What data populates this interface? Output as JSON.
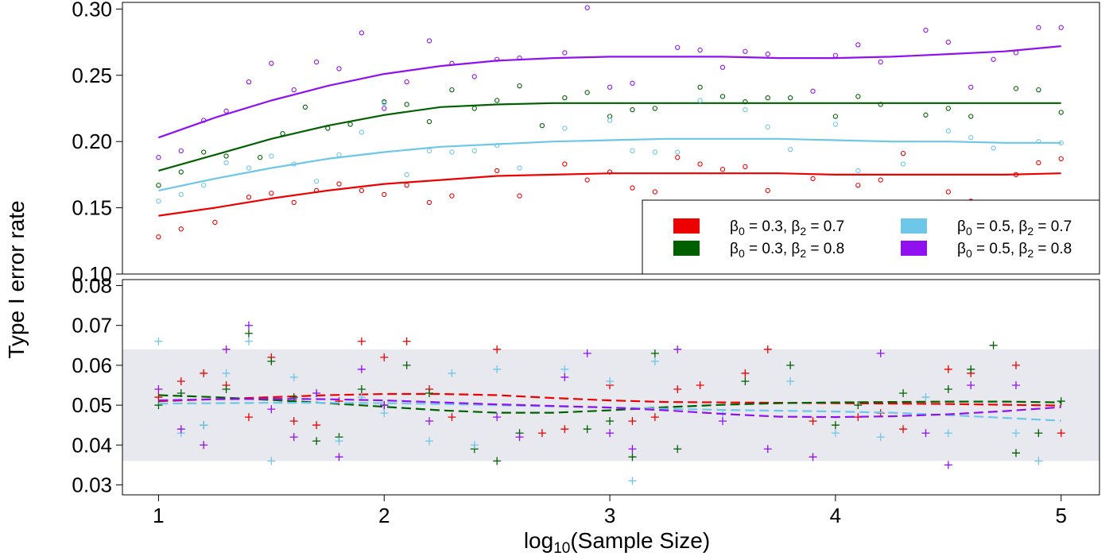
{
  "chart_data": [
    {
      "type": "scatter",
      "panel": "top",
      "ylabel": "Type I error rate",
      "xlim": [
        0.84,
        5.17
      ],
      "ylim": [
        0.1,
        0.305
      ],
      "yticks": [
        "0.10",
        "0.15",
        "0.20",
        "0.25",
        "0.30"
      ],
      "marker": "circle",
      "series": [
        {
          "name": "β0 = 0.3, β2 = 0.7",
          "color": "#EE0000",
          "x": [
            1.0,
            1.1,
            1.25,
            1.4,
            1.5,
            1.6,
            1.7,
            1.8,
            1.9,
            2.0,
            2.1,
            2.2,
            2.3,
            2.5,
            2.6,
            2.8,
            2.9,
            3.0,
            3.1,
            3.2,
            3.3,
            3.4,
            3.5,
            3.6,
            3.7,
            3.9,
            4.1,
            4.2,
            4.3,
            4.5,
            4.6,
            4.8,
            4.9,
            5.0
          ],
          "y": [
            0.128,
            0.134,
            0.139,
            0.158,
            0.161,
            0.154,
            0.163,
            0.168,
            0.163,
            0.16,
            0.167,
            0.154,
            0.159,
            0.178,
            0.159,
            0.183,
            0.171,
            0.177,
            0.165,
            0.162,
            0.188,
            0.183,
            0.179,
            0.181,
            0.163,
            0.172,
            0.167,
            0.171,
            0.191,
            0.162,
            0.155,
            0.175,
            0.184,
            0.187
          ],
          "fit_x": [
            1.0,
            1.25,
            1.5,
            1.75,
            2.0,
            2.25,
            2.5,
            2.75,
            3.0,
            3.25,
            3.5,
            3.75,
            4.0,
            4.25,
            4.5,
            4.75,
            5.0
          ],
          "fit_y": [
            0.144,
            0.15,
            0.157,
            0.163,
            0.168,
            0.171,
            0.174,
            0.175,
            0.176,
            0.176,
            0.176,
            0.176,
            0.175,
            0.175,
            0.175,
            0.175,
            0.176
          ]
        },
        {
          "name": "β0 = 0.3, β2 = 0.8",
          "color": "#006000",
          "x": [
            1.0,
            1.1,
            1.2,
            1.3,
            1.45,
            1.55,
            1.65,
            1.75,
            1.85,
            2.0,
            2.1,
            2.2,
            2.3,
            2.4,
            2.5,
            2.6,
            2.7,
            2.8,
            2.9,
            3.0,
            3.1,
            3.2,
            3.4,
            3.5,
            3.6,
            3.7,
            3.8,
            4.0,
            4.1,
            4.2,
            4.4,
            4.5,
            4.6,
            4.8,
            4.9,
            5.0
          ],
          "y": [
            0.167,
            0.177,
            0.192,
            0.189,
            0.188,
            0.206,
            0.226,
            0.21,
            0.213,
            0.23,
            0.228,
            0.215,
            0.239,
            0.225,
            0.231,
            0.242,
            0.212,
            0.233,
            0.237,
            0.219,
            0.224,
            0.225,
            0.241,
            0.234,
            0.23,
            0.233,
            0.233,
            0.219,
            0.234,
            0.228,
            0.22,
            0.225,
            0.219,
            0.24,
            0.239,
            0.222
          ],
          "fit_x": [
            1.0,
            1.25,
            1.5,
            1.75,
            2.0,
            2.25,
            2.5,
            2.75,
            3.0,
            3.25,
            3.5,
            3.75,
            4.0,
            4.25,
            4.5,
            4.75,
            5.0
          ],
          "fit_y": [
            0.178,
            0.19,
            0.202,
            0.212,
            0.22,
            0.226,
            0.228,
            0.229,
            0.229,
            0.229,
            0.229,
            0.229,
            0.229,
            0.229,
            0.229,
            0.229,
            0.229
          ]
        },
        {
          "name": "β0 = 0.5, β2 = 0.7",
          "color": "#6EC6E8",
          "x": [
            1.0,
            1.1,
            1.2,
            1.3,
            1.4,
            1.5,
            1.6,
            1.7,
            1.8,
            1.9,
            2.0,
            2.1,
            2.2,
            2.3,
            2.4,
            2.5,
            2.6,
            2.8,
            3.0,
            3.1,
            3.2,
            3.3,
            3.4,
            3.6,
            3.7,
            3.8,
            4.0,
            4.1,
            4.3,
            4.5,
            4.6,
            4.7,
            4.9,
            5.0
          ],
          "y": [
            0.155,
            0.16,
            0.167,
            0.184,
            0.18,
            0.189,
            0.183,
            0.17,
            0.19,
            0.207,
            0.229,
            0.175,
            0.193,
            0.192,
            0.193,
            0.197,
            0.18,
            0.21,
            0.216,
            0.193,
            0.192,
            0.192,
            0.231,
            0.224,
            0.211,
            0.194,
            0.213,
            0.178,
            0.183,
            0.208,
            0.203,
            0.195,
            0.2,
            0.199
          ],
          "fit_x": [
            1.0,
            1.25,
            1.5,
            1.75,
            2.0,
            2.25,
            2.5,
            2.75,
            3.0,
            3.25,
            3.5,
            3.75,
            4.0,
            4.25,
            4.5,
            4.75,
            5.0
          ],
          "fit_y": [
            0.163,
            0.172,
            0.18,
            0.187,
            0.192,
            0.196,
            0.198,
            0.2,
            0.201,
            0.202,
            0.202,
            0.202,
            0.201,
            0.2,
            0.2,
            0.199,
            0.199
          ]
        },
        {
          "name": "β0 = 0.5, β2 = 0.8",
          "color": "#9010F0",
          "x": [
            1.0,
            1.1,
            1.2,
            1.3,
            1.4,
            1.5,
            1.6,
            1.7,
            1.8,
            1.9,
            2.0,
            2.1,
            2.2,
            2.3,
            2.4,
            2.5,
            2.6,
            2.8,
            2.9,
            3.0,
            3.1,
            3.3,
            3.4,
            3.5,
            3.6,
            3.7,
            3.9,
            4.0,
            4.1,
            4.2,
            4.4,
            4.5,
            4.6,
            4.7,
            4.8,
            4.9,
            5.0
          ],
          "y": [
            0.188,
            0.193,
            0.216,
            0.223,
            0.245,
            0.259,
            0.239,
            0.26,
            0.255,
            0.282,
            0.225,
            0.245,
            0.276,
            0.259,
            0.249,
            0.262,
            0.263,
            0.267,
            0.301,
            0.241,
            0.244,
            0.271,
            0.269,
            0.256,
            0.268,
            0.266,
            0.238,
            0.265,
            0.273,
            0.26,
            0.284,
            0.275,
            0.241,
            0.262,
            0.267,
            0.286,
            0.286
          ],
          "fit_x": [
            1.0,
            1.25,
            1.5,
            1.75,
            2.0,
            2.25,
            2.5,
            2.75,
            3.0,
            3.25,
            3.5,
            3.75,
            4.0,
            4.25,
            4.5,
            4.75,
            5.0
          ],
          "fit_y": [
            0.203,
            0.218,
            0.231,
            0.242,
            0.251,
            0.257,
            0.261,
            0.263,
            0.264,
            0.264,
            0.264,
            0.263,
            0.263,
            0.264,
            0.266,
            0.268,
            0.272
          ]
        }
      ],
      "legend": {
        "placement": "bottom-right",
        "entries": [
          {
            "color": "#EE0000",
            "b0": "0.3",
            "b2": "0.7"
          },
          {
            "color": "#6EC6E8",
            "b0": "0.5",
            "b2": "0.7"
          },
          {
            "color": "#006000",
            "b0": "0.3",
            "b2": "0.8"
          },
          {
            "color": "#9010F0",
            "b0": "0.5",
            "b2": "0.8"
          }
        ]
      }
    },
    {
      "type": "scatter",
      "panel": "bottom",
      "xlabel_prefix": "log",
      "xlabel_subscript": "10",
      "xlabel_suffix": "(Sample Size)",
      "xlim": [
        0.84,
        5.17
      ],
      "ylim": [
        0.0275,
        0.0815
      ],
      "xticks": [
        "1",
        "2",
        "3",
        "4",
        "5"
      ],
      "yticks": [
        "0.03",
        "0.04",
        "0.05",
        "0.06",
        "0.07",
        "0.08"
      ],
      "band": [
        0.036,
        0.064
      ],
      "band_color": "#E8E8EF",
      "marker": "plus",
      "series": [
        {
          "name": "β0 = 0.3, β2 = 0.7",
          "color": "#EE0000",
          "x": [
            1.0,
            1.1,
            1.2,
            1.3,
            1.4,
            1.5,
            1.6,
            1.7,
            1.8,
            1.9,
            2.0,
            2.1,
            2.2,
            2.3,
            2.5,
            2.7,
            2.8,
            3.0,
            3.1,
            3.2,
            3.3,
            3.4,
            3.6,
            3.7,
            3.9,
            4.1,
            4.2,
            4.3,
            4.5,
            4.6,
            4.8,
            5.0
          ],
          "y": [
            0.052,
            0.056,
            0.058,
            0.055,
            0.047,
            0.062,
            0.046,
            0.045,
            0.051,
            0.066,
            0.062,
            0.066,
            0.054,
            0.047,
            0.064,
            0.043,
            0.044,
            0.055,
            0.046,
            0.047,
            0.054,
            0.055,
            0.058,
            0.064,
            0.046,
            0.047,
            0.048,
            0.044,
            0.059,
            0.058,
            0.06,
            0.043
          ],
          "fit_x": [
            1.0,
            1.25,
            1.5,
            1.75,
            2.0,
            2.25,
            2.5,
            2.75,
            3.0,
            3.25,
            3.5,
            3.75,
            4.0,
            4.25,
            4.5,
            4.75,
            5.0
          ],
          "fit_y": [
            0.051,
            0.0515,
            0.052,
            0.0525,
            0.0528,
            0.0528,
            0.0525,
            0.0518,
            0.0512,
            0.0508,
            0.0507,
            0.0506,
            0.0505,
            0.0504,
            0.0503,
            0.0501,
            0.0499
          ]
        },
        {
          "name": "β0 = 0.3, β2 = 0.8",
          "color": "#006000",
          "x": [
            1.0,
            1.1,
            1.2,
            1.3,
            1.4,
            1.5,
            1.6,
            1.7,
            1.8,
            1.9,
            2.0,
            2.1,
            2.2,
            2.4,
            2.5,
            2.6,
            2.9,
            3.0,
            3.1,
            3.2,
            3.3,
            3.6,
            3.8,
            4.0,
            4.1,
            4.3,
            4.5,
            4.6,
            4.7,
            4.8,
            4.9,
            5.0
          ],
          "y": [
            0.05,
            0.053,
            0.045,
            0.054,
            0.068,
            0.061,
            0.052,
            0.041,
            0.042,
            0.054,
            0.05,
            0.06,
            0.053,
            0.039,
            0.036,
            0.043,
            0.044,
            0.046,
            0.037,
            0.063,
            0.039,
            0.056,
            0.06,
            0.045,
            0.05,
            0.053,
            0.054,
            0.059,
            0.065,
            0.038,
            0.043,
            0.051
          ],
          "fit_x": [
            1.0,
            1.25,
            1.5,
            1.75,
            2.0,
            2.25,
            2.5,
            2.75,
            3.0,
            3.25,
            3.5,
            3.75,
            4.0,
            4.25,
            4.5,
            4.75,
            5.0
          ],
          "fit_y": [
            0.0525,
            0.052,
            0.0513,
            0.0505,
            0.0496,
            0.0487,
            0.0481,
            0.0481,
            0.0487,
            0.0495,
            0.0501,
            0.0505,
            0.0507,
            0.0508,
            0.0509,
            0.0509,
            0.0507
          ]
        },
        {
          "name": "β0 = 0.5, β2 = 0.7",
          "color": "#6EC6E8",
          "x": [
            1.0,
            1.1,
            1.2,
            1.3,
            1.4,
            1.5,
            1.6,
            1.7,
            1.8,
            1.9,
            2.0,
            2.2,
            2.3,
            2.4,
            2.5,
            2.8,
            3.0,
            3.1,
            3.2,
            3.5,
            3.8,
            4.0,
            4.2,
            4.4,
            4.5,
            4.8,
            4.9
          ],
          "y": [
            0.066,
            0.043,
            0.045,
            0.058,
            0.066,
            0.036,
            0.057,
            0.053,
            0.041,
            0.052,
            0.048,
            0.041,
            0.058,
            0.04,
            0.059,
            0.059,
            0.056,
            0.031,
            0.061,
            0.048,
            0.056,
            0.043,
            0.042,
            0.052,
            0.043,
            0.043,
            0.036
          ],
          "fit_x": [
            1.0,
            1.25,
            1.5,
            1.75,
            2.0,
            2.25,
            2.5,
            2.75,
            3.0,
            3.25,
            3.5,
            3.75,
            4.0,
            4.25,
            4.5,
            4.75,
            5.0
          ],
          "fit_y": [
            0.0504,
            0.0505,
            0.0506,
            0.0506,
            0.0505,
            0.0503,
            0.05,
            0.0497,
            0.0494,
            0.0491,
            0.0488,
            0.0486,
            0.0484,
            0.0481,
            0.0475,
            0.0468,
            0.0461
          ]
        },
        {
          "name": "β0 = 0.5, β2 = 0.8",
          "color": "#9010F0",
          "x": [
            1.0,
            1.1,
            1.2,
            1.3,
            1.4,
            1.5,
            1.6,
            1.7,
            1.8,
            1.9,
            2.0,
            2.2,
            2.5,
            2.6,
            2.8,
            2.9,
            3.0,
            3.1,
            3.3,
            3.5,
            3.7,
            3.9,
            4.2,
            4.4,
            4.5,
            4.6,
            4.8
          ],
          "y": [
            0.054,
            0.044,
            0.04,
            0.064,
            0.07,
            0.049,
            0.042,
            0.053,
            0.037,
            0.059,
            0.05,
            0.046,
            0.047,
            0.042,
            0.057,
            0.063,
            0.043,
            0.039,
            0.064,
            0.046,
            0.039,
            0.037,
            0.063,
            0.043,
            0.035,
            0.055,
            0.055
          ],
          "fit_x": [
            1.0,
            1.25,
            1.5,
            1.75,
            2.0,
            2.25,
            2.5,
            2.75,
            3.0,
            3.25,
            3.5,
            3.75,
            4.0,
            4.25,
            4.5,
            4.75,
            5.0
          ],
          "fit_y": [
            0.0512,
            0.0515,
            0.0516,
            0.0515,
            0.0512,
            0.0507,
            0.0502,
            0.0498,
            0.0494,
            0.0487,
            0.0478,
            0.0471,
            0.047,
            0.0472,
            0.0477,
            0.0485,
            0.0495
          ]
        }
      ]
    }
  ]
}
